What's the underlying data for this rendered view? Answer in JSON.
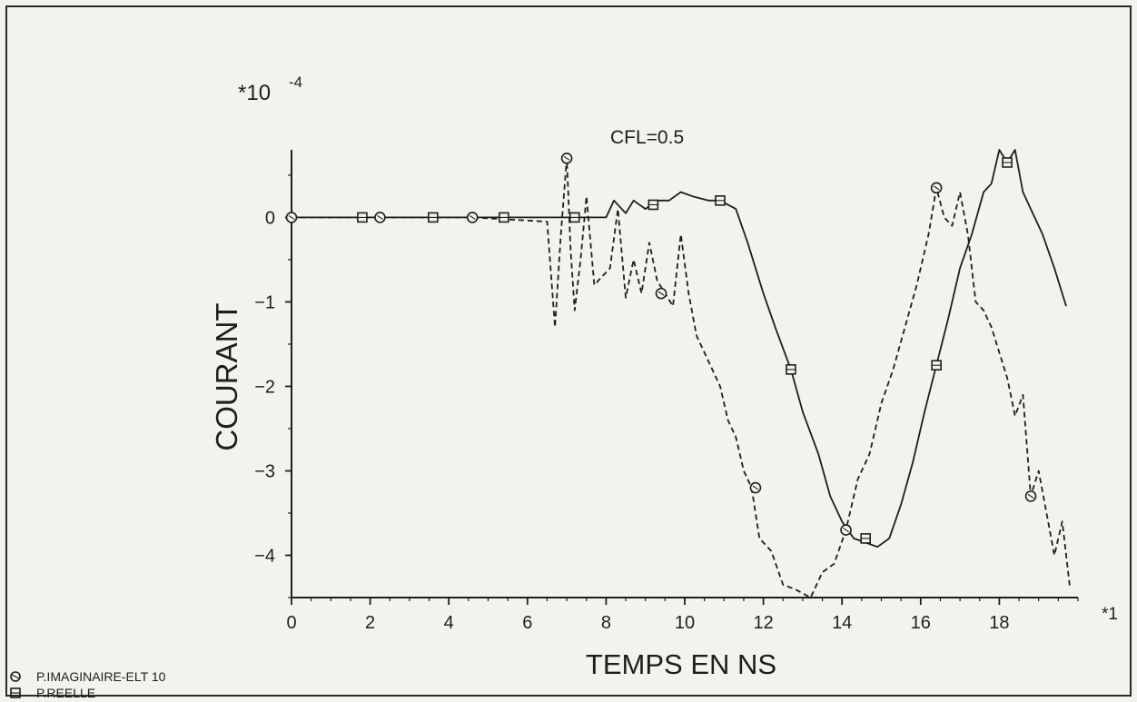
{
  "chart_data": {
    "type": "line",
    "title": "CFL=0.5",
    "xlabel": "TEMPS EN NS",
    "ylabel": "COURANT",
    "y_multiplier": "*10",
    "y_multiplier_exp": "-4",
    "x_multiplier": "*1",
    "xlim": [
      0,
      20
    ],
    "ylim": [
      -4.5,
      0.8
    ],
    "x_ticks": [
      0,
      2,
      4,
      6,
      8,
      10,
      12,
      14,
      16,
      18
    ],
    "y_ticks": [
      0,
      -1,
      -2,
      -3,
      -4
    ],
    "grid": false,
    "legend_position": "bottom-left",
    "series": [
      {
        "name": "P.IMAGINAIRE-ELT 10",
        "marker": "circle",
        "line_style": "dashed",
        "x": [
          0,
          2.2,
          4.6,
          6.5,
          6.7,
          6.85,
          7.0,
          7.1,
          7.2,
          7.35,
          7.5,
          7.7,
          7.9,
          8.1,
          8.3,
          8.5,
          8.7,
          8.9,
          9.1,
          9.3,
          9.5,
          9.7,
          9.9,
          10.1,
          10.3,
          10.5,
          10.7,
          10.9,
          11.1,
          11.3,
          11.5,
          11.7,
          11.9,
          12.2,
          12.5,
          12.8,
          13.2,
          13.5,
          13.8,
          14.1,
          14.4,
          14.7,
          15.0,
          15.3,
          15.6,
          15.9,
          16.2,
          16.4,
          16.6,
          16.8,
          17.0,
          17.2,
          17.4,
          17.6,
          17.8,
          18.0,
          18.2,
          18.4,
          18.6,
          18.8,
          19.0,
          19.2,
          19.4,
          19.6,
          19.8
        ],
        "y": [
          0,
          0,
          0,
          -0.05,
          -1.3,
          -0.2,
          0.7,
          -0.4,
          -1.1,
          -0.5,
          0.25,
          -0.8,
          -0.7,
          -0.6,
          0.1,
          -0.95,
          -0.5,
          -0.9,
          -0.3,
          -0.75,
          -0.9,
          -1.05,
          -0.2,
          -0.9,
          -1.4,
          -1.6,
          -1.8,
          -2.0,
          -2.4,
          -2.6,
          -3.0,
          -3.2,
          -3.8,
          -3.95,
          -4.35,
          -4.4,
          -4.5,
          -4.2,
          -4.1,
          -3.7,
          -3.1,
          -2.8,
          -2.2,
          -1.8,
          -1.3,
          -0.8,
          -0.2,
          0.35,
          0.0,
          -0.1,
          0.3,
          -0.2,
          -1.0,
          -1.1,
          -1.3,
          -1.6,
          -1.9,
          -2.35,
          -2.1,
          -3.3,
          -3.0,
          -3.5,
          -4.0,
          -3.6,
          -4.4
        ]
      },
      {
        "name": "P.REELLE",
        "marker": "square",
        "line_style": "solid",
        "x": [
          0,
          1.8,
          3.6,
          5.4,
          7.2,
          7.7,
          8.0,
          8.2,
          8.5,
          8.7,
          9.0,
          9.3,
          9.6,
          9.9,
          10.2,
          10.6,
          10.9,
          11.3,
          11.6,
          12.0,
          12.3,
          12.7,
          13.0,
          13.4,
          13.7,
          14.0,
          14.3,
          14.6,
          14.9,
          15.2,
          15.5,
          15.8,
          16.1,
          16.4,
          16.7,
          17.0,
          17.3,
          17.6,
          17.8,
          18.0,
          18.2,
          18.4,
          18.6,
          18.8,
          19.1,
          19.4,
          19.7
        ],
        "y": [
          0,
          0,
          0,
          0,
          0,
          0,
          0.0,
          0.2,
          0.05,
          0.2,
          0.1,
          0.2,
          0.2,
          0.3,
          0.25,
          0.2,
          0.2,
          0.1,
          -0.3,
          -0.9,
          -1.3,
          -1.8,
          -2.3,
          -2.8,
          -3.3,
          -3.6,
          -3.8,
          -3.85,
          -3.9,
          -3.8,
          -3.4,
          -2.9,
          -2.3,
          -1.75,
          -1.2,
          -0.6,
          -0.2,
          0.3,
          0.4,
          0.8,
          0.65,
          0.8,
          0.3,
          0.1,
          -0.2,
          -0.6,
          -1.05
        ]
      }
    ],
    "marker_points": [
      {
        "series": 0,
        "points": [
          [
            0,
            0
          ],
          [
            2.25,
            0
          ],
          [
            4.6,
            0
          ],
          [
            7.0,
            0.7
          ],
          [
            9.4,
            -0.9
          ],
          [
            11.8,
            -3.2
          ],
          [
            14.1,
            -3.7
          ],
          [
            16.4,
            0.35
          ],
          [
            18.8,
            -3.3
          ]
        ]
      },
      {
        "series": 1,
        "points": [
          [
            1.8,
            0
          ],
          [
            3.6,
            0
          ],
          [
            5.4,
            0
          ],
          [
            7.2,
            0
          ],
          [
            9.2,
            0.15
          ],
          [
            10.9,
            0.2
          ],
          [
            12.7,
            -1.8
          ],
          [
            14.6,
            -3.8
          ],
          [
            16.4,
            -1.75
          ],
          [
            18.2,
            0.65
          ]
        ]
      }
    ]
  }
}
